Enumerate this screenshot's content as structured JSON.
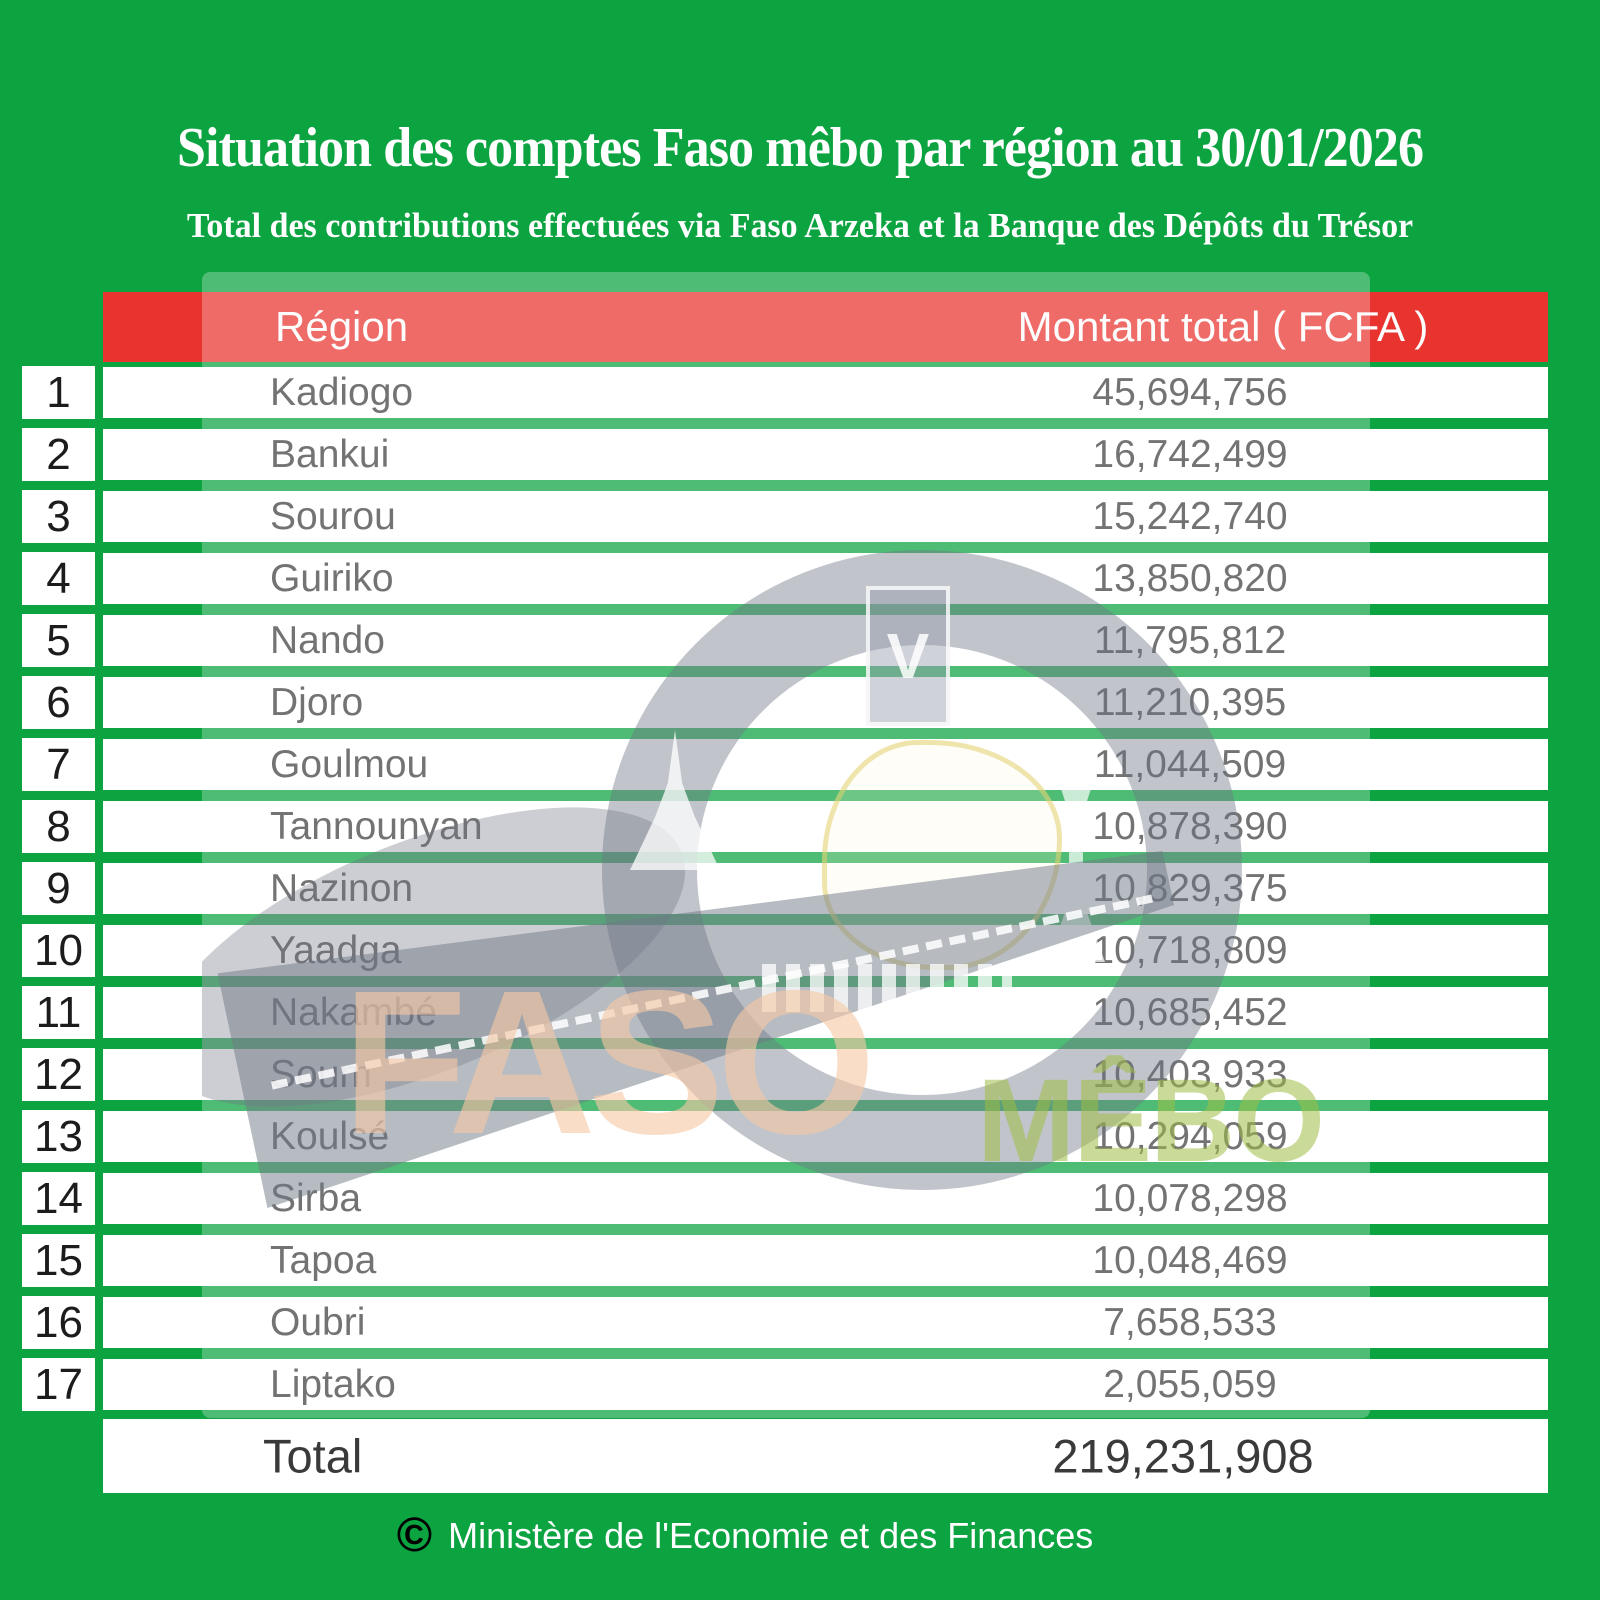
{
  "title": "Situation des comptes Faso mêbo par région au 30/01/2026",
  "subtitle": "Total des contributions effectuées via Faso Arzeka et la Banque des Dépôts du Trésor",
  "table": {
    "headers": {
      "region": "Région",
      "amount": "Montant total ( FCFA )"
    },
    "rows": [
      {
        "rank": "1",
        "region": "Kadiogo",
        "amount": "45,694,756"
      },
      {
        "rank": "2",
        "region": "Bankui",
        "amount": "16,742,499"
      },
      {
        "rank": "3",
        "region": "Sourou",
        "amount": "15,242,740"
      },
      {
        "rank": "4",
        "region": "Guiriko",
        "amount": "13,850,820"
      },
      {
        "rank": "5",
        "region": "Nando",
        "amount": "11,795,812"
      },
      {
        "rank": "6",
        "region": "Djoro",
        "amount": "11,210,395"
      },
      {
        "rank": "7",
        "region": "Goulmou",
        "amount": "11,044,509"
      },
      {
        "rank": "8",
        "region": "Tannounyan",
        "amount": "10,878,390"
      },
      {
        "rank": "9",
        "region": "Nazinon",
        "amount": "10,829,375"
      },
      {
        "rank": "10",
        "region": "Yaadga",
        "amount": "10,718,809"
      },
      {
        "rank": "11",
        "region": "Nakambé",
        "amount": "10,685,452"
      },
      {
        "rank": "12",
        "region": "Soum",
        "amount": "10,403,933"
      },
      {
        "rank": "13",
        "region": "Koulsé",
        "amount": "10,294,059"
      },
      {
        "rank": "14",
        "region": "Sirba",
        "amount": "10,078,298"
      },
      {
        "rank": "15",
        "region": "Tapoa",
        "amount": "10,048,469"
      },
      {
        "rank": "16",
        "region": "Oubri",
        "amount": "7,658,533"
      },
      {
        "rank": "17",
        "region": "Liptako",
        "amount": "2,055,059"
      }
    ],
    "total": {
      "label": "Total",
      "amount": "219,231,908"
    }
  },
  "watermark": {
    "brand1": "FASO",
    "brand2": "MÊBO",
    "monument_glyph": "V"
  },
  "footer": {
    "copyright_symbol": "©",
    "text": "Ministère de l'Economie et des Finances"
  },
  "colors": {
    "background_green": "#0CA341",
    "header_red": "#E8332E",
    "row_white": "#FFFFFF",
    "row_text": "#3E3E3E",
    "title_white": "#FFFFFF"
  },
  "chart_data": {
    "type": "table",
    "title": "Situation des comptes Faso mêbo par région au 30/01/2026",
    "subtitle": "Total des contributions effectuées via Faso Arzeka et la Banque des Dépôts du Trésor",
    "columns": [
      "Région",
      "Montant total ( FCFA )"
    ],
    "rows": [
      [
        "Kadiogo",
        45694756
      ],
      [
        "Bankui",
        16742499
      ],
      [
        "Sourou",
        15242740
      ],
      [
        "Guiriko",
        13850820
      ],
      [
        "Nando",
        11795812
      ],
      [
        "Djoro",
        11210395
      ],
      [
        "Goulmou",
        11044509
      ],
      [
        "Tannounyan",
        10878390
      ],
      [
        "Nazinon",
        10829375
      ],
      [
        "Yaadga",
        10718809
      ],
      [
        "Nakambé",
        10685452
      ],
      [
        "Soum",
        10403933
      ],
      [
        "Koulsé",
        10294059
      ],
      [
        "Sirba",
        10078298
      ],
      [
        "Tapoa",
        10048469
      ],
      [
        "Oubri",
        7658533
      ],
      [
        "Liptako",
        2055059
      ]
    ],
    "total": [
      "Total",
      219231908
    ]
  }
}
